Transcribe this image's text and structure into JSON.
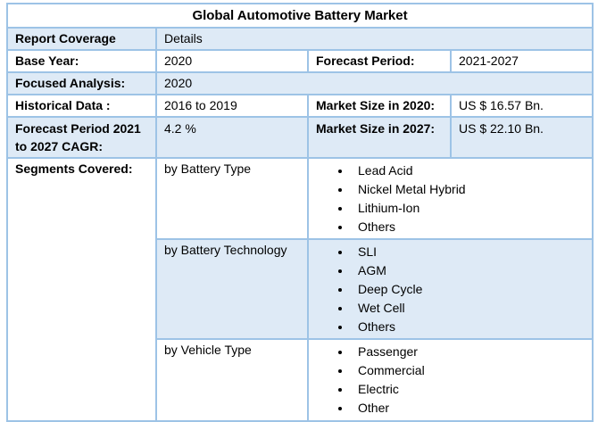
{
  "title": "Global Automotive Battery Market",
  "colors": {
    "highlight_row_fill": "#DEEAF6",
    "grid_border": "#9DC3E6",
    "text": "#000000",
    "background": "#FFFFFF"
  },
  "rows": {
    "report_coverage": {
      "label": "Report Coverage",
      "value": "Details"
    },
    "base_year": {
      "label": "Base Year:",
      "value": "2020"
    },
    "forecast_period": {
      "label": "Forecast Period:",
      "value": "2021-2027"
    },
    "focused_analysis": {
      "label": "Focused Analysis:",
      "value": "2020"
    },
    "historical_data": {
      "label": "Historical Data :",
      "value": "2016 to 2019"
    },
    "market_size_2020": {
      "label": "Market Size in 2020:",
      "value": "US $ 16.57 Bn."
    },
    "cagr": {
      "label": "Forecast Period 2021 to 2027 CAGR:",
      "value": "4.2 %"
    },
    "market_size_2027": {
      "label": "Market Size in 2027:",
      "value": "US $ 22.10 Bn."
    },
    "segments": {
      "label": "Segments Covered:",
      "groups": [
        {
          "name": "by Battery Type",
          "items": [
            "Lead Acid",
            "Nickel Metal Hybrid",
            "Lithium-Ion",
            "Others"
          ]
        },
        {
          "name": "by Battery Technology",
          "items": [
            "SLI",
            "AGM",
            "Deep Cycle",
            "Wet Cell",
            "Others"
          ]
        },
        {
          "name": "by Vehicle Type",
          "items": [
            "Passenger",
            "Commercial",
            "Electric",
            "Other"
          ]
        }
      ]
    }
  }
}
